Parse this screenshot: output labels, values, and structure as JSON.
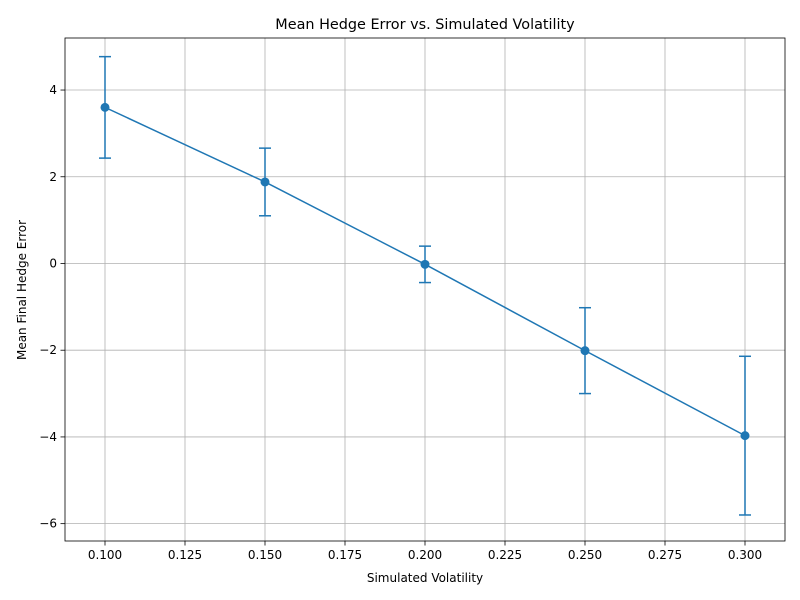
{
  "chart_data": {
    "type": "line",
    "title": "Mean Hedge Error vs. Simulated Volatility",
    "xlabel": "Simulated Volatility",
    "ylabel": "Mean Final Hedge Error",
    "xlim": [
      0.0875,
      0.3125
    ],
    "ylim": [
      -6.4,
      5.2
    ],
    "xticks": [
      "0.100",
      "0.125",
      "0.150",
      "0.175",
      "0.200",
      "0.225",
      "0.250",
      "0.275",
      "0.300"
    ],
    "xtick_values": [
      0.1,
      0.125,
      0.15,
      0.175,
      0.2,
      0.225,
      0.25,
      0.275,
      0.3
    ],
    "yticks": [
      "−6",
      "−4",
      "−2",
      "0",
      "2",
      "4"
    ],
    "ytick_values": [
      -6,
      -4,
      -2,
      0,
      2,
      4
    ],
    "grid": true,
    "color": "#1f77b4",
    "series": [
      {
        "x": [
          0.1,
          0.15,
          0.2,
          0.25,
          0.3
        ],
        "y": [
          3.6,
          1.88,
          -0.02,
          -2.01,
          -3.97
        ],
        "yerr": [
          1.17,
          0.78,
          0.42,
          0.99,
          1.83
        ]
      }
    ]
  }
}
